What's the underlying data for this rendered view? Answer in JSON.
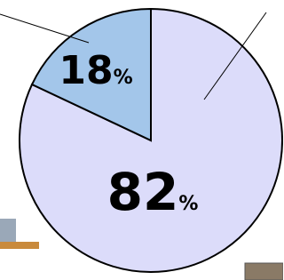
{
  "chart_data": {
    "type": "pie",
    "categories": [
      null,
      null
    ],
    "values": [
      82,
      18
    ],
    "value_labels": [
      "82%",
      "18%"
    ],
    "colors": [
      "#dcdcfa",
      "#a3c6ea"
    ]
  }
}
